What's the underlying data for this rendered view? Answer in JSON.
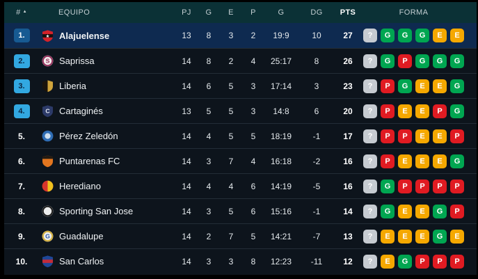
{
  "table": {
    "header": {
      "num": "#",
      "sort_icon": "▲",
      "equipo": "EQUIPO",
      "pj": "PJ",
      "g": "G",
      "e": "E",
      "p": "P",
      "goles": "G",
      "dg": "DG",
      "pts": "PTS",
      "forma": "FORMA"
    },
    "colors": {
      "header_bg": "#0b3136",
      "row_bg": "#0d141c",
      "highlight_row_bg": "#0e2a50",
      "separator": "#232d37"
    },
    "form_palette": {
      "?": "#c6cbd1",
      "G": "#00a651",
      "E": "#f5a800",
      "P": "#e01b22"
    },
    "pos_badge_colors": {
      "primary": {
        "bg": "#175a92",
        "fg": "#ffffff"
      },
      "secondary": {
        "bg": "#32a8e1",
        "fg": "#0b2540"
      }
    },
    "rows": [
      {
        "pos": "1.",
        "badge": "primary",
        "highlight": true,
        "bold": true,
        "name": "Alajuelense",
        "crest": {
          "shape": "shield",
          "pattern": "band",
          "c1": "#d3222a",
          "c2": "#16100f",
          "letter": "★",
          "letter_color": "#ffffff"
        },
        "pj": "13",
        "g": "8",
        "e": "3",
        "p": "2",
        "goles": "19:9",
        "dg": "10",
        "pts": "27",
        "form": [
          "?",
          "G",
          "G",
          "G",
          "E",
          "E"
        ]
      },
      {
        "pos": "2.",
        "badge": "secondary",
        "highlight": false,
        "bold": false,
        "name": "Saprissa",
        "crest": {
          "shape": "circle",
          "pattern": "ring",
          "c1": "#f3ebec",
          "c2": "#94305c",
          "letter": "S",
          "letter_color": "#94305c"
        },
        "pj": "14",
        "g": "8",
        "e": "2",
        "p": "4",
        "goles": "25:17",
        "dg": "8",
        "pts": "26",
        "form": [
          "?",
          "G",
          "P",
          "G",
          "G",
          "G"
        ]
      },
      {
        "pos": "3.",
        "badge": "secondary",
        "highlight": false,
        "bold": false,
        "name": "Liberia",
        "crest": {
          "shape": "shield",
          "pattern": "half",
          "c1": "#1a140c",
          "c2": "#cfa43c",
          "letter": "",
          "letter_color": ""
        },
        "pj": "14",
        "g": "6",
        "e": "5",
        "p": "3",
        "goles": "17:14",
        "dg": "3",
        "pts": "23",
        "form": [
          "?",
          "P",
          "G",
          "E",
          "E",
          "G"
        ]
      },
      {
        "pos": "4.",
        "badge": "secondary",
        "highlight": false,
        "bold": false,
        "name": "Cartaginés",
        "crest": {
          "shape": "shield",
          "pattern": "none",
          "c1": "#2c3a68",
          "c2": "#3d4f85",
          "letter": "C",
          "letter_color": "#e6ebf4"
        },
        "pj": "13",
        "g": "5",
        "e": "5",
        "p": "3",
        "goles": "14:8",
        "dg": "6",
        "pts": "20",
        "form": [
          "?",
          "P",
          "E",
          "E",
          "P",
          "G"
        ]
      },
      {
        "pos": "5.",
        "badge": "none",
        "highlight": false,
        "bold": false,
        "name": "Pérez Zeledón",
        "crest": {
          "shape": "circle",
          "pattern": "dot",
          "c1": "#2f6db4",
          "c2": "#cfe0f0",
          "letter": "",
          "letter_color": ""
        },
        "pj": "14",
        "g": "4",
        "e": "5",
        "p": "5",
        "goles": "18:19",
        "dg": "-1",
        "pts": "17",
        "form": [
          "?",
          "P",
          "P",
          "E",
          "E",
          "P"
        ]
      },
      {
        "pos": "6.",
        "badge": "none",
        "highlight": false,
        "bold": false,
        "name": "Puntarenas FC",
        "crest": {
          "shape": "shield",
          "pattern": "chief",
          "c1": "#e2761f",
          "c2": "#241b12",
          "letter": "",
          "letter_color": ""
        },
        "pj": "14",
        "g": "3",
        "e": "7",
        "p": "4",
        "goles": "16:18",
        "dg": "-2",
        "pts": "16",
        "form": [
          "?",
          "P",
          "E",
          "E",
          "E",
          "G"
        ]
      },
      {
        "pos": "7.",
        "badge": "none",
        "highlight": false,
        "bold": false,
        "name": "Herediano",
        "crest": {
          "shape": "circle",
          "pattern": "half",
          "c1": "#d8352c",
          "c2": "#efc11e",
          "letter": "",
          "letter_color": ""
        },
        "pj": "14",
        "g": "4",
        "e": "4",
        "p": "6",
        "goles": "14:19",
        "dg": "-5",
        "pts": "16",
        "form": [
          "?",
          "G",
          "P",
          "P",
          "P",
          "P"
        ]
      },
      {
        "pos": "8.",
        "badge": "none",
        "highlight": false,
        "bold": false,
        "name": "Sporting San Jose",
        "crest": {
          "shape": "circle",
          "pattern": "ring",
          "c1": "#ececec",
          "c2": "#1d1d1d",
          "letter": "",
          "letter_color": ""
        },
        "pj": "14",
        "g": "3",
        "e": "5",
        "p": "6",
        "goles": "15:16",
        "dg": "-1",
        "pts": "14",
        "form": [
          "?",
          "G",
          "E",
          "E",
          "G",
          "P"
        ]
      },
      {
        "pos": "9.",
        "badge": "none",
        "highlight": false,
        "bold": false,
        "name": "Guadalupe",
        "crest": {
          "shape": "circle",
          "pattern": "ring",
          "c1": "#eceded",
          "c2": "#d4af3a",
          "letter": "G",
          "letter_color": "#2b57a8"
        },
        "pj": "14",
        "g": "2",
        "e": "7",
        "p": "5",
        "goles": "14:21",
        "dg": "-7",
        "pts": "13",
        "form": [
          "?",
          "E",
          "E",
          "E",
          "G",
          "E"
        ]
      },
      {
        "pos": "10.",
        "badge": "none",
        "highlight": false,
        "bold": false,
        "name": "San Carlos",
        "crest": {
          "shape": "shield",
          "pattern": "band",
          "c1": "#1f4796",
          "c2": "#c22b3a",
          "letter": "",
          "letter_color": ""
        },
        "pj": "14",
        "g": "3",
        "e": "3",
        "p": "8",
        "goles": "12:23",
        "dg": "-11",
        "pts": "12",
        "form": [
          "?",
          "E",
          "G",
          "P",
          "P",
          "P"
        ]
      }
    ]
  }
}
